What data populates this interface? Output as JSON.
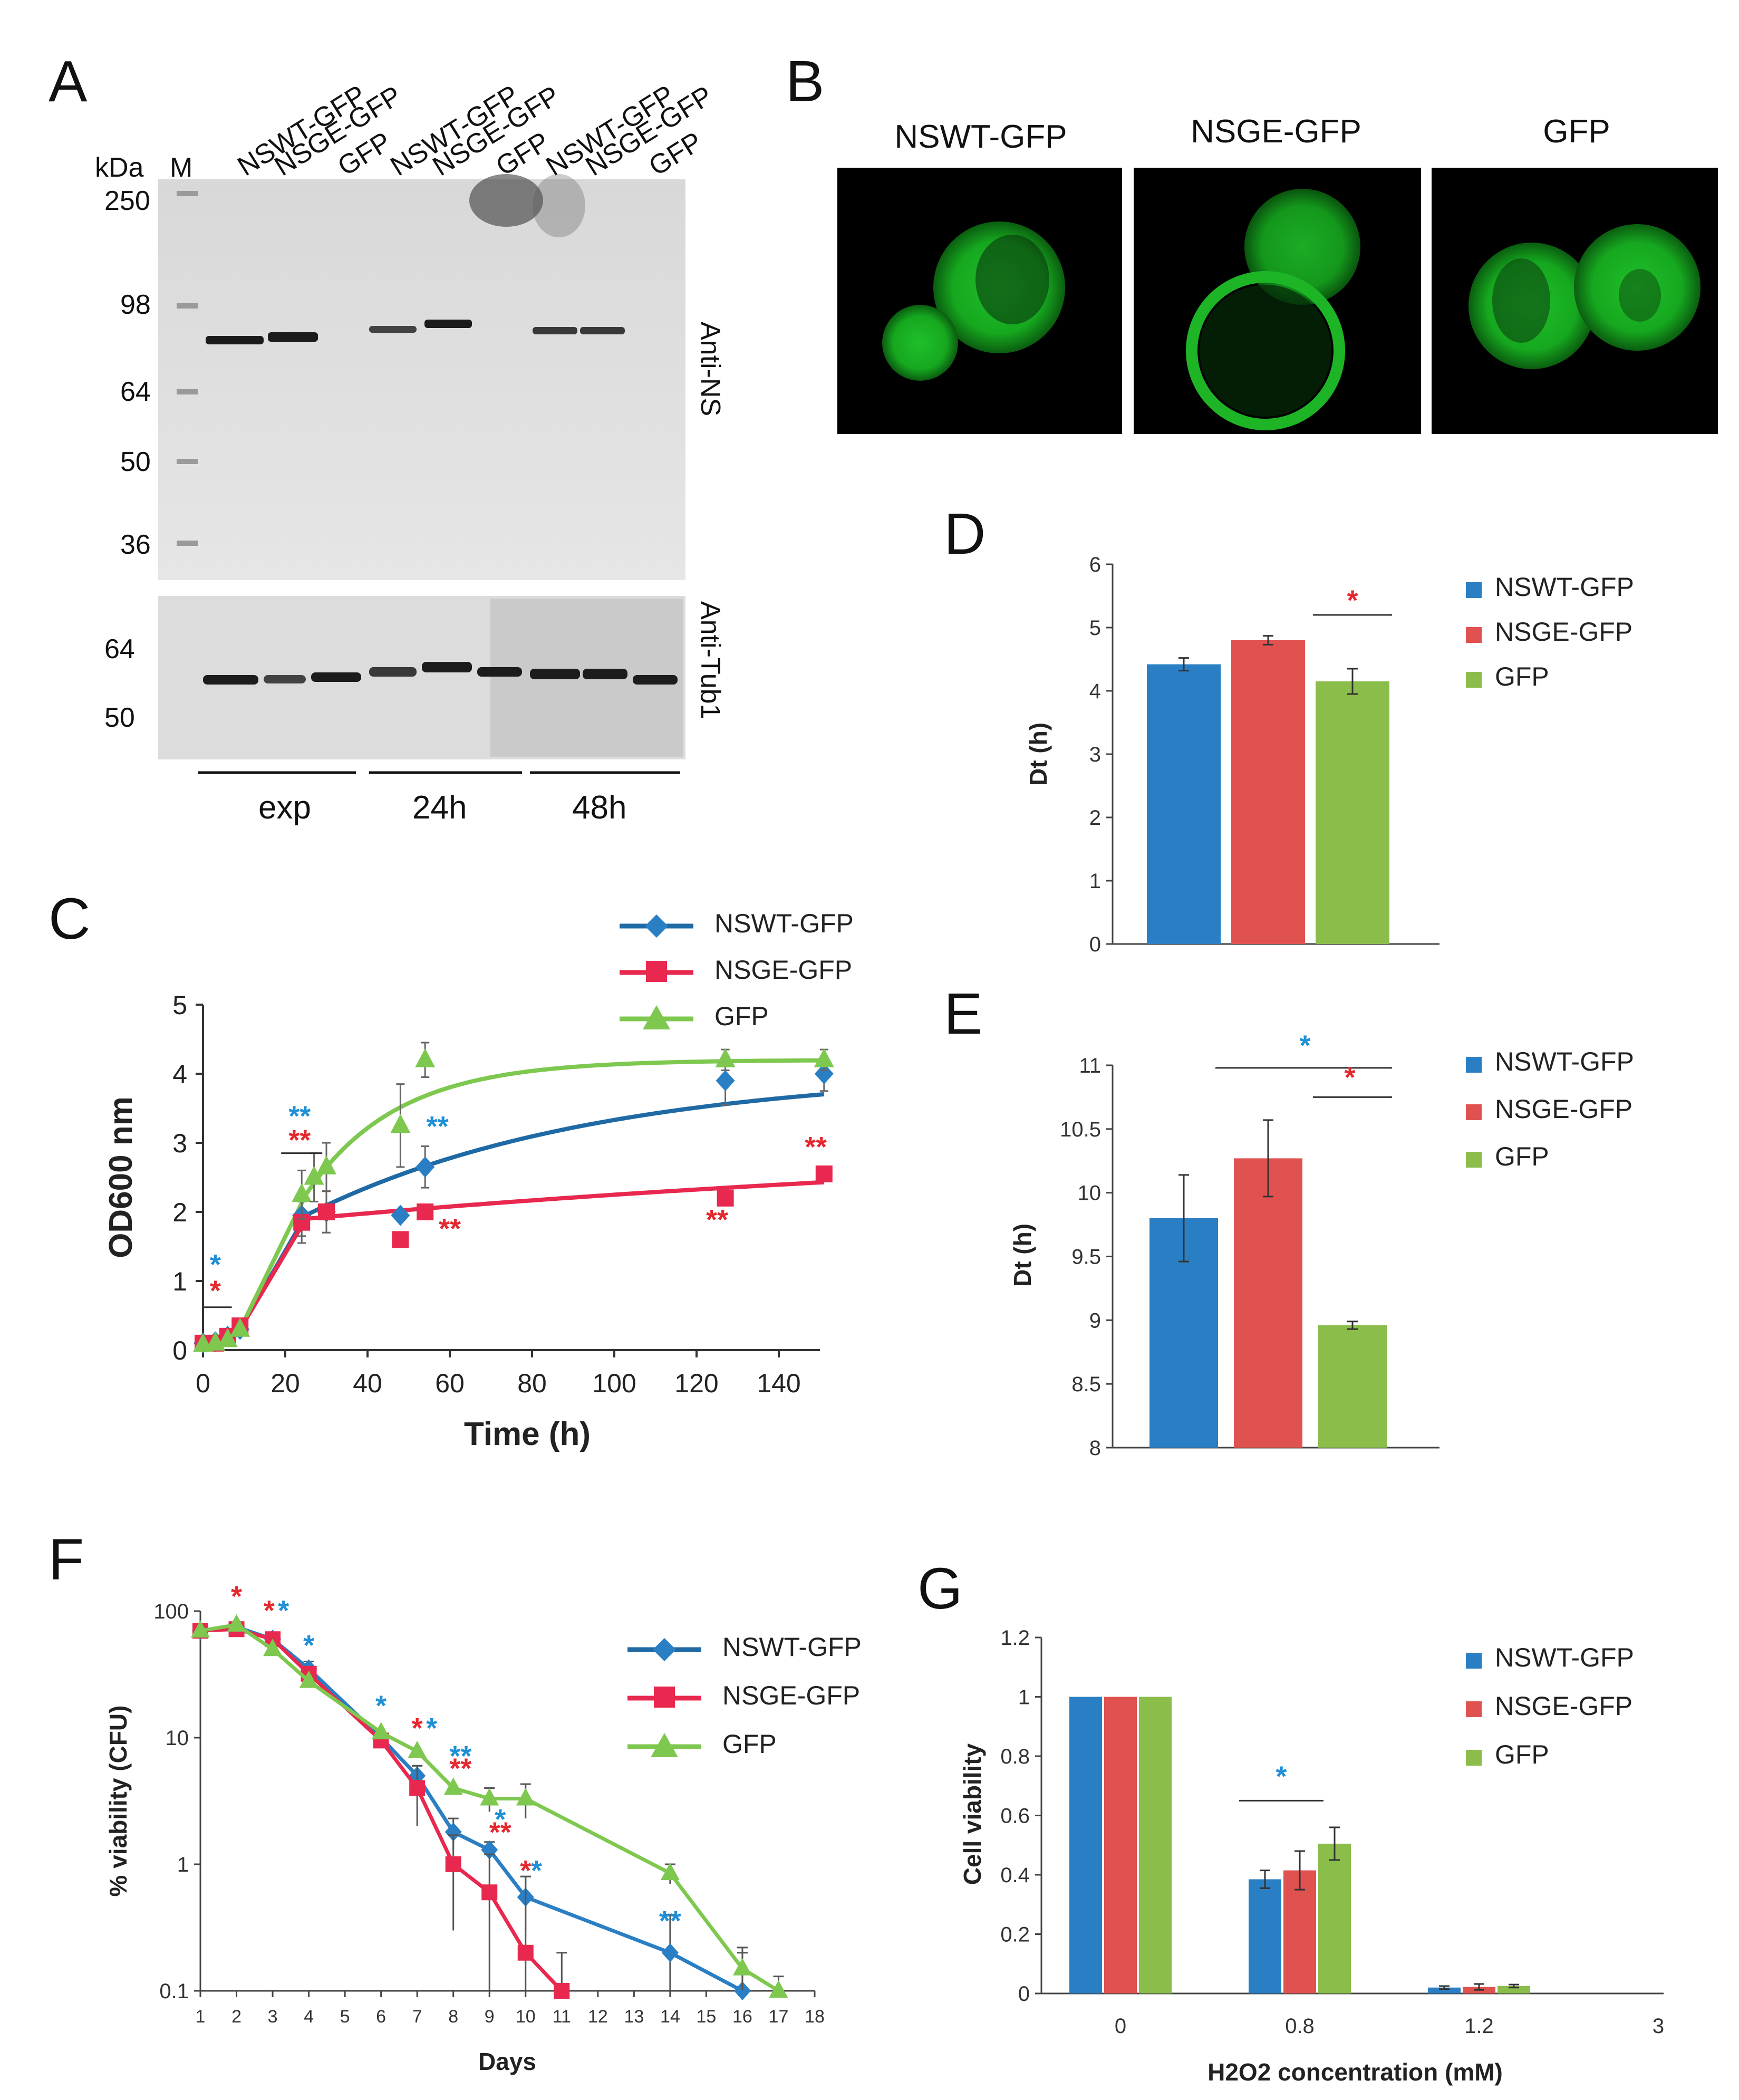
{
  "panels": {
    "A": {
      "letter": "A",
      "kda_label": "kDa",
      "marker_label": "M",
      "mw_marks": [
        "250",
        "98",
        "64",
        "50",
        "36"
      ],
      "tub_mw_marks": [
        "64",
        "50"
      ],
      "lane_labels": [
        "NSWT-GFP",
        "NSGE-GFP",
        "GFP",
        "NSWT-GFP",
        "NSGE-GFP",
        "GFP",
        "NSWT-GFP",
        "NSGE-GFP",
        "GFP"
      ],
      "antibody_top": "Anti-NS",
      "antibody_bottom": "Anti-Tub1",
      "groups": [
        "exp",
        "24h",
        "48h"
      ]
    },
    "B": {
      "letter": "B",
      "images": [
        "NSWT-GFP",
        "NSGE-GFP",
        "GFP"
      ]
    }
  },
  "colors": {
    "wt": "#2a7fc4",
    "ge": "#e0524f",
    "gfp": "#8bbd4b",
    "wt_line": "#1f6aa5",
    "ge_line": "#e8284e",
    "gfp_line": "#7ec850",
    "sig_blue": "#1f8fd6",
    "sig_red": "#e4282e"
  },
  "legend": {
    "wt": "NSWT-GFP",
    "ge": "NSGE-GFP",
    "gfp": "GFP"
  },
  "chart_data": [
    {
      "panel": "C",
      "type": "line",
      "xlabel": "Time (h)",
      "ylabel": "OD600 nm",
      "xlim": [
        0,
        150
      ],
      "ylim": [
        0,
        5
      ],
      "xticks": [
        "0",
        "20",
        "40",
        "60",
        "80",
        "100",
        "120",
        "140"
      ],
      "yticks": [
        "0",
        "1",
        "2",
        "3",
        "4",
        "5"
      ],
      "series": [
        {
          "name": "NSWT-GFP",
          "x": [
            0,
            3,
            6,
            9,
            24,
            30,
            48,
            54,
            127,
            151
          ],
          "y": [
            0.1,
            0.12,
            0.2,
            0.3,
            1.95,
            2.0,
            1.95,
            2.65,
            3.9,
            4.0
          ]
        },
        {
          "name": "NSGE-GFP",
          "x": [
            0,
            3,
            6,
            9,
            24,
            30,
            48,
            54,
            127,
            151
          ],
          "y": [
            0.1,
            0.1,
            0.2,
            0.35,
            1.85,
            2.0,
            1.6,
            2.0,
            2.2,
            2.55
          ]
        },
        {
          "name": "GFP",
          "x": [
            0,
            3,
            6,
            9,
            24,
            27,
            30,
            48,
            54,
            127,
            151
          ],
          "y": [
            0.08,
            0.1,
            0.15,
            0.3,
            2.25,
            2.5,
            2.65,
            3.25,
            4.2,
            4.2,
            4.2
          ]
        }
      ],
      "annotations": [
        "*",
        "*",
        "**",
        "**",
        "**",
        "**",
        "**",
        "**"
      ]
    },
    {
      "panel": "D",
      "type": "bar",
      "ylabel": "Dt (h)",
      "ylim": [
        0,
        6
      ],
      "yticks": [
        "0",
        "1",
        "2",
        "3",
        "4",
        "5",
        "6"
      ],
      "series": [
        {
          "name": "NSWT-GFP",
          "values": [
            4.42
          ],
          "err": [
            0.1
          ]
        },
        {
          "name": "NSGE-GFP",
          "values": [
            4.8
          ],
          "err": [
            0.07
          ]
        },
        {
          "name": "GFP",
          "values": [
            4.15
          ],
          "err": [
            0.2
          ]
        }
      ],
      "annotations": [
        "*"
      ]
    },
    {
      "panel": "E",
      "type": "bar",
      "ylabel": "Dt (h)",
      "ylim": [
        8,
        11
      ],
      "yticks": [
        "8",
        "8.5",
        "9",
        "9.5",
        "10",
        "10.5",
        "11"
      ],
      "series": [
        {
          "name": "NSWT-GFP",
          "values": [
            9.8
          ],
          "err": [
            0.34
          ]
        },
        {
          "name": "NSGE-GFP",
          "values": [
            10.27
          ],
          "err": [
            0.3
          ]
        },
        {
          "name": "GFP",
          "values": [
            8.96
          ],
          "err": [
            0.03
          ]
        }
      ],
      "annotations": [
        "*",
        "*"
      ]
    },
    {
      "panel": "F",
      "type": "line",
      "log_y": true,
      "xlabel": "Days",
      "ylabel": "% viability (CFU)",
      "ylim": [
        0.1,
        100
      ],
      "xticks": [
        "1",
        "2",
        "3",
        "4",
        "5",
        "6",
        "7",
        "8",
        "9",
        "10",
        "11",
        "12",
        "13",
        "14",
        "15",
        "16",
        "17",
        "18"
      ],
      "yticks": [
        "0.1",
        "1",
        "10",
        "100"
      ],
      "series": [
        {
          "name": "NSWT-GFP",
          "x": [
            1,
            2,
            3,
            4,
            6,
            7,
            8,
            9,
            10,
            14,
            16
          ],
          "y": [
            70,
            75,
            60,
            35,
            10,
            5,
            1.8,
            1.3,
            0.55,
            0.2,
            0.1
          ]
        },
        {
          "name": "NSGE-GFP",
          "x": [
            1,
            2,
            3,
            4,
            6,
            7,
            8,
            9,
            10,
            11
          ],
          "y": [
            70,
            72,
            60,
            32,
            9.5,
            4,
            1.0,
            0.6,
            0.2,
            0.1
          ]
        },
        {
          "name": "GFP",
          "x": [
            1,
            2,
            3,
            4,
            6,
            7,
            8,
            9,
            10,
            14,
            16,
            17
          ],
          "y": [
            70,
            78,
            50,
            28,
            11,
            7.8,
            4.0,
            3.3,
            3.3,
            0.85,
            0.15,
            0.1
          ]
        }
      ],
      "annotations": [
        "*",
        "*",
        "*",
        "*",
        "*",
        "*",
        "*",
        "**",
        "**",
        "*",
        "**",
        "*",
        "*",
        "**"
      ]
    },
    {
      "panel": "G",
      "type": "bar",
      "xlabel": "H2O2 concentration (mM)",
      "ylabel": "Cell viability",
      "ylim": [
        0,
        1.2
      ],
      "categories": [
        "0",
        "0.8",
        "1.2",
        "3"
      ],
      "yticks": [
        "0",
        "0.2",
        "0.4",
        "0.6",
        "0.8",
        "1",
        "1.2"
      ],
      "series": [
        {
          "name": "NSWT-GFP",
          "values": [
            1.0,
            0.385,
            0.02,
            0.0
          ],
          "err": [
            0,
            0.03,
            0.005,
            0
          ]
        },
        {
          "name": "NSGE-GFP",
          "values": [
            1.0,
            0.415,
            0.022,
            0.0
          ],
          "err": [
            0,
            0.065,
            0.01,
            0
          ]
        },
        {
          "name": "GFP",
          "values": [
            1.0,
            0.505,
            0.025,
            0.0
          ],
          "err": [
            0,
            0.055,
            0.005,
            0
          ]
        }
      ],
      "annotations": [
        "*"
      ]
    }
  ]
}
